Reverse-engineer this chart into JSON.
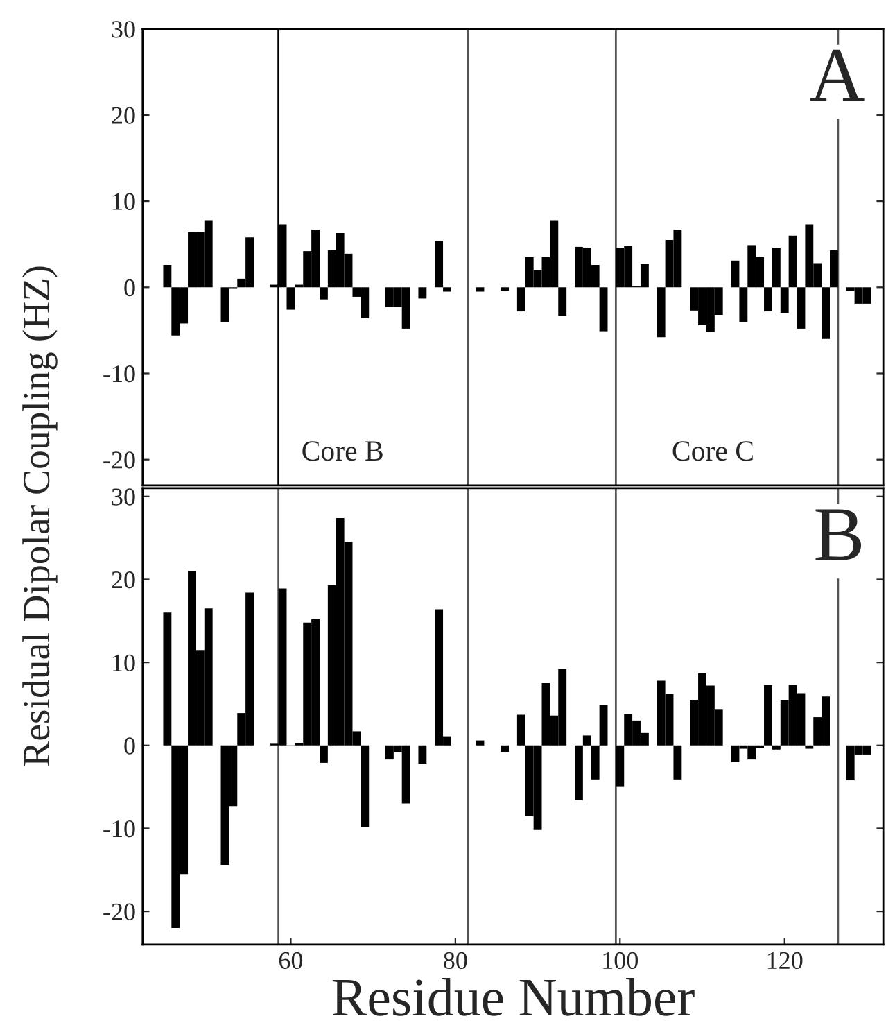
{
  "chart_data": [
    {
      "type": "bar",
      "ylabel": "Residual Dipolar Coupling (HZ)",
      "xlim": [
        42,
        132
      ],
      "ylim": [
        -23,
        30
      ],
      "yticks": [
        -20,
        -10,
        0,
        10,
        20,
        30
      ],
      "tick_labels": "y",
      "grid": false,
      "legend": false,
      "x": [
        45,
        46,
        47,
        48,
        49,
        50,
        52,
        53,
        54,
        55,
        58,
        59,
        60,
        61,
        62,
        63,
        64,
        65,
        66,
        67,
        68,
        69,
        72,
        73,
        74,
        76,
        78,
        79,
        83,
        86,
        88,
        89,
        90,
        91,
        92,
        93,
        95,
        96,
        97,
        98,
        100,
        101,
        102,
        103,
        105,
        106,
        107,
        109,
        110,
        111,
        112,
        114,
        115,
        116,
        117,
        118,
        119,
        120,
        121,
        122,
        123,
        124,
        125,
        126,
        128,
        129,
        130
      ],
      "series": [
        {
          "color": "#000000",
          "values": [
            2.6,
            -5.6,
            -4.2,
            6.4,
            6.4,
            7.8,
            -4,
            -0.1,
            1,
            5.8,
            0.3,
            7.3,
            -2.6,
            0.3,
            4.2,
            6.7,
            -1.4,
            4.3,
            6.3,
            3.9,
            -1.1,
            -3.6,
            -2.3,
            -2.3,
            -4.8,
            -1.3,
            5.4,
            -0.5,
            -0.5,
            -0.4,
            -2.8,
            3.5,
            2,
            3.5,
            7.8,
            -3.3,
            4.7,
            4.6,
            2.6,
            -5.1,
            4.6,
            4.8,
            0.1,
            2.7,
            -5.8,
            5.5,
            6.7,
            -2.7,
            -4.4,
            -5.2,
            -3.2,
            3.1,
            -4,
            4.9,
            3.5,
            -2.8,
            4.6,
            -3,
            6,
            -4.8,
            7.3,
            2.8,
            -6,
            4.3,
            -0.4,
            -1.9,
            -1.9
          ]
        }
      ],
      "ref_lines": [
        {
          "axis": "x",
          "value": 58.5,
          "color": "#000000"
        },
        {
          "axis": "x",
          "value": 81.5,
          "color": "#555555"
        },
        {
          "axis": "x",
          "value": 99.5,
          "color": "#555555"
        },
        {
          "axis": "x",
          "value": 126.5,
          "color": "#555555"
        }
      ],
      "annotations": [
        "Core B",
        "Core C",
        "A"
      ]
    },
    {
      "type": "bar",
      "xlabel": "Residue Number",
      "xlim": [
        42,
        132
      ],
      "xticks": [
        60,
        80,
        100,
        120
      ],
      "ylim": [
        -24,
        31
      ],
      "yticks": [
        -20,
        -10,
        0,
        10,
        20,
        30
      ],
      "grid": false,
      "legend": false,
      "x": [
        45,
        46,
        47,
        48,
        49,
        50,
        52,
        53,
        54,
        55,
        58,
        59,
        60,
        61,
        62,
        63,
        64,
        65,
        66,
        67,
        68,
        69,
        72,
        73,
        74,
        76,
        78,
        79,
        83,
        86,
        88,
        89,
        90,
        91,
        92,
        93,
        95,
        96,
        97,
        98,
        100,
        101,
        102,
        103,
        105,
        106,
        107,
        109,
        110,
        111,
        112,
        114,
        115,
        116,
        117,
        118,
        119,
        120,
        121,
        122,
        123,
        124,
        125,
        128,
        129,
        130
      ],
      "series": [
        {
          "color": "#000000",
          "values": [
            16,
            -22,
            -15.5,
            21,
            11.5,
            16.5,
            -14.4,
            -7.3,
            3.9,
            18.4,
            0.2,
            18.9,
            -0.1,
            0.3,
            14.8,
            15.2,
            -2.1,
            19.3,
            27.4,
            24.5,
            1.7,
            -9.8,
            -1.7,
            -0.8,
            -7,
            -2.2,
            16.4,
            1.1,
            0.6,
            -0.8,
            3.7,
            -8.5,
            -10.2,
            7.5,
            3.6,
            9.2,
            -6.6,
            1.2,
            -4.1,
            4.9,
            -5,
            3.8,
            3,
            1.5,
            7.8,
            6.2,
            -4.1,
            5.5,
            8.7,
            7.2,
            4.3,
            -2,
            -0.4,
            -1.7,
            -0.3,
            7.3,
            -0.5,
            5.5,
            7.3,
            6.3,
            -0.4,
            3.4,
            5.9,
            -4.2,
            -1.1,
            -1.1
          ]
        }
      ],
      "ref_lines": [
        {
          "axis": "x",
          "value": 58.5,
          "color": "#555555"
        },
        {
          "axis": "x",
          "value": 81.5,
          "color": "#555555"
        },
        {
          "axis": "x",
          "value": 99.5,
          "color": "#555555"
        },
        {
          "axis": "x",
          "value": 126.5,
          "color": "#555555"
        }
      ],
      "annotations": [
        "B"
      ]
    }
  ]
}
